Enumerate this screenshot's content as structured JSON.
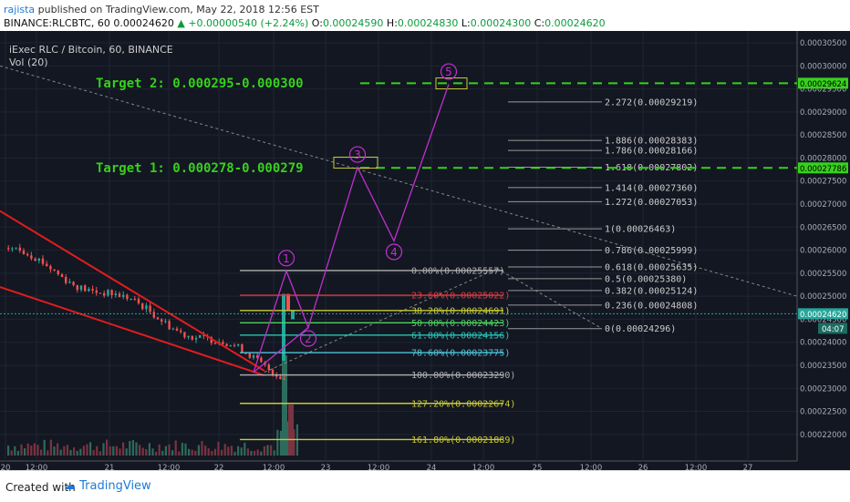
{
  "header": {
    "author": "rajista",
    "published": "published on TradingView.com, May 22, 2018 12:56 EST",
    "symbol": "BINANCE:RLCBTC, 60",
    "open": "0.00024620",
    "change": "+0.00000540 (+2.24%)",
    "o": "0.00024590",
    "h": "0.00024830",
    "l": "0.00024300",
    "c": "0.00024620"
  },
  "legend": {
    "title": "iExec RLC / Bitcoin, 60, BINANCE",
    "vol": "Vol (20)"
  },
  "footer": {
    "created": "Created with",
    "brand": "TradingView"
  },
  "colors": {
    "bg": "#131722",
    "target": "#37d11c",
    "wave": "#c030ce",
    "wedge": "#e11d1d"
  },
  "chart_data": {
    "type": "line",
    "y_ticks": [
      "0.00030500",
      "0.00030000",
      "0.00029500",
      "0.00029000",
      "0.00028500",
      "0.00028000",
      "0.00027500",
      "0.00027000",
      "0.00026500",
      "0.00026000",
      "0.00025500",
      "0.00025000",
      "0.00024500",
      "0.00024000",
      "0.00023500",
      "0.00023000",
      "0.00022500",
      "0.00022000"
    ],
    "x_ticks": [
      "20",
      "12:00",
      "21",
      "12:00",
      "22",
      "12:00",
      "23",
      "12:00",
      "24",
      "12:00",
      "25",
      "12:00",
      "26",
      "12:00",
      "27"
    ],
    "last_price_label": "0.00024620",
    "last_time_label": "04:07",
    "targets": [
      {
        "label": "Target 2: 0.000295-0.000300",
        "price_label": "0.00029624",
        "value": 0.00029624
      },
      {
        "label": "Target 1: 0.000278-0.000279",
        "price_label": "0.00027786",
        "value": 0.00027786
      }
    ],
    "retracement": [
      {
        "label": "0.00%(0.00025557)",
        "value": 0.00025557,
        "color": "#b0b0b0"
      },
      {
        "label": "23.60%(0.00025022)",
        "value": 0.00025022,
        "color": "#e0383e"
      },
      {
        "label": "38.20%(0.00024691)",
        "value": 0.00024691,
        "color": "#c9c935"
      },
      {
        "label": "50.00%(0.00024423)",
        "value": 0.00024423,
        "color": "#4bd15f"
      },
      {
        "label": "61.80%(0.00024156)",
        "value": 0.00024156,
        "color": "#26c6b3"
      },
      {
        "label": "78.60%(0.00023775)",
        "value": 0.00023775,
        "color": "#4fc3d8"
      },
      {
        "label": "100.00%(0.00023290)",
        "value": 0.0002329,
        "color": "#b0b0b0"
      },
      {
        "label": "127.20%(0.00022674)",
        "value": 0.00022674,
        "color": "#c9c935"
      },
      {
        "label": "161.80%(0.00021889)",
        "value": 0.00021889,
        "color": "#c9c935"
      }
    ],
    "extension": [
      {
        "label": "2.272(0.00029219)",
        "value": 0.00029219
      },
      {
        "label": "1.886(0.00028383)",
        "value": 0.00028383
      },
      {
        "label": "1.786(0.00028166)",
        "value": 0.00028166
      },
      {
        "label": "1.618(0.00027802)",
        "value": 0.00027802
      },
      {
        "label": "1.414(0.00027360)",
        "value": 0.0002736
      },
      {
        "label": "1.272(0.00027053)",
        "value": 0.00027053
      },
      {
        "label": "1(0.00026463)",
        "value": 0.00026463
      },
      {
        "label": "0.786(0.00025999)",
        "value": 0.00025999
      },
      {
        "label": "0.618(0.00025635)",
        "value": 0.00025635
      },
      {
        "label": "0.5(0.00025380)",
        "value": 0.0002538
      },
      {
        "label": "0.382(0.00025124)",
        "value": 0.00025124
      },
      {
        "label": "0.236(0.00024808)",
        "value": 0.00024808
      },
      {
        "label": "0(0.00024296)",
        "value": 0.00024296
      }
    ],
    "waves": [
      {
        "label": "1",
        "value": 0.0002555
      },
      {
        "label": "2",
        "value": 0.0002432
      },
      {
        "label": "3",
        "value": 0.000278
      },
      {
        "label": "4",
        "value": 0.000262
      },
      {
        "label": "5",
        "value": 0.000296
      }
    ],
    "ylim": [
      0.000217,
      0.000306
    ]
  }
}
